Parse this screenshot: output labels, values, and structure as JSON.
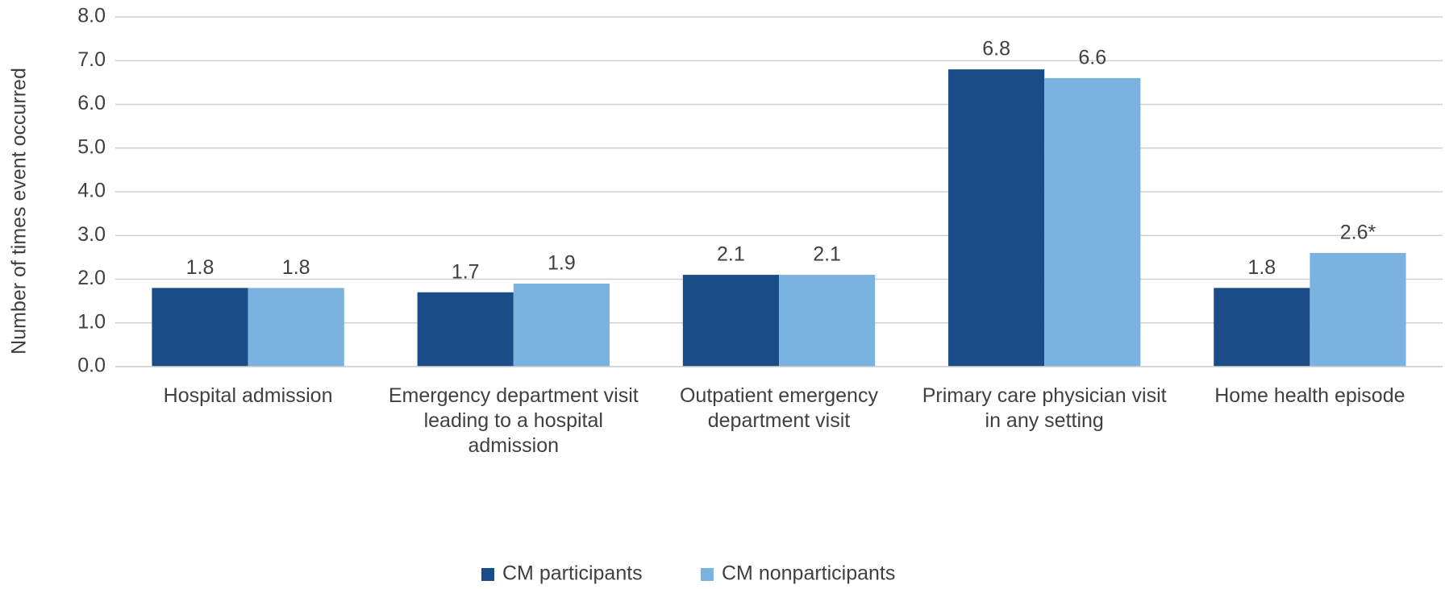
{
  "chart_data": {
    "type": "bar",
    "y_label": "Number of times event occurred",
    "categories": [
      "Hospital admission",
      "Emergency department visit leading to a hospital admission",
      "Outpatient emergency department visit",
      "Primary care physician visit in any setting",
      "Home health episode"
    ],
    "series": [
      {
        "name": "CM participants",
        "color": "#1a4c87",
        "values": [
          1.8,
          1.7,
          2.1,
          6.8,
          1.8
        ],
        "value_labels": [
          "1.8",
          "1.7",
          "2.1",
          "6.8",
          "1.8"
        ]
      },
      {
        "name": "CM nonparticipants",
        "color": "#7ab3df",
        "values": [
          1.8,
          1.9,
          2.1,
          6.6,
          2.6
        ],
        "value_labels": [
          "1.8",
          "1.9",
          "2.1",
          "6.6",
          "2.6*"
        ]
      }
    ],
    "ylim": [
      0,
      8
    ],
    "yticks": [
      {
        "value": 0,
        "label": "0.0"
      },
      {
        "value": 1,
        "label": "1.0"
      },
      {
        "value": 2,
        "label": "2.0"
      },
      {
        "value": 3,
        "label": "3.0"
      },
      {
        "value": 4,
        "label": "4.0"
      },
      {
        "value": 5,
        "label": "5.0"
      },
      {
        "value": 6,
        "label": "6.0"
      },
      {
        "value": 7,
        "label": "7.0"
      },
      {
        "value": 8,
        "label": "8.0"
      }
    ],
    "grid": true,
    "legend": "bottom"
  }
}
